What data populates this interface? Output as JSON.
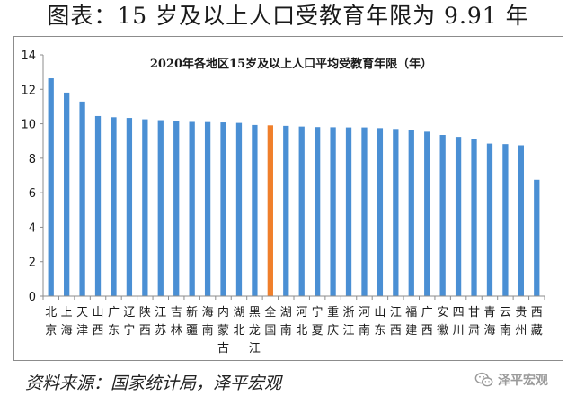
{
  "headline": "图表：15 岁及以上人口受教育年限为 9.91 年",
  "source": "资料来源：国家统计局，泽平宏观",
  "watermark": "泽平宏观",
  "watermark_icon": "wechat-icon",
  "colors": {
    "bar": "#4a8fd4",
    "highlight": "#f07f2b",
    "axis": "#8c8c8c"
  },
  "chart_data": {
    "type": "bar",
    "title": "2020年各地区15岁及以上人口平均受教育年限（年）",
    "xlabel": "",
    "ylabel": "",
    "ylim": [
      0,
      14
    ],
    "yticks": [
      0,
      2,
      4,
      6,
      8,
      10,
      12,
      14
    ],
    "grid": false,
    "highlight_category": "全国",
    "categories": [
      "北京",
      "上海",
      "天津",
      "山西",
      "广东",
      "辽宁",
      "陕西",
      "江苏",
      "吉林",
      "新疆",
      "海南",
      "内蒙古",
      "湖北",
      "黑龙江",
      "全国",
      "湖南",
      "河北",
      "宁夏",
      "重庆",
      "浙江",
      "河南",
      "山东",
      "江西",
      "福建",
      "广西",
      "安徽",
      "四川",
      "甘肃",
      "青海",
      "云南",
      "贵州",
      "西藏"
    ],
    "values": [
      12.64,
      11.81,
      11.29,
      10.45,
      10.38,
      10.34,
      10.26,
      10.21,
      10.17,
      10.11,
      10.1,
      10.08,
      10.05,
      9.93,
      9.91,
      9.88,
      9.84,
      9.81,
      9.8,
      9.79,
      9.79,
      9.75,
      9.7,
      9.66,
      9.54,
      9.35,
      9.24,
      9.13,
      8.85,
      8.82,
      8.75,
      6.75
    ]
  }
}
